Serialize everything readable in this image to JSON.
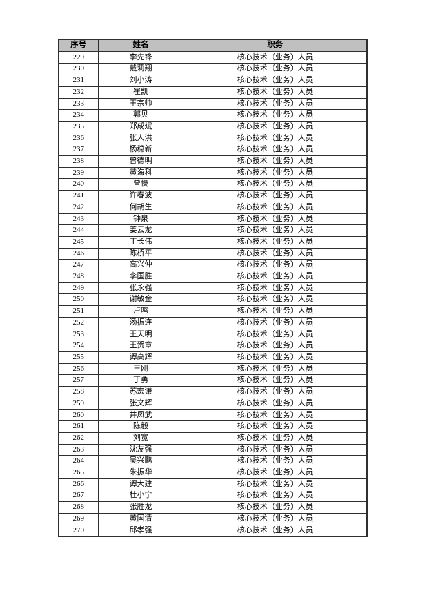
{
  "page": {
    "background": "#ffffff"
  },
  "table": {
    "header_bg": "#c0c0c0",
    "border_color": "#2f2f2f",
    "headers": [
      "序号",
      "姓名",
      "职务"
    ],
    "rows": [
      {
        "no": "229",
        "name": "李先锋",
        "title": "核心技术（业务）人员"
      },
      {
        "no": "230",
        "name": "戴莉翔",
        "title": "核心技术（业务）人员"
      },
      {
        "no": "231",
        "name": "刘小涛",
        "title": "核心技术（业务）人员"
      },
      {
        "no": "232",
        "name": "崔凯",
        "title": "核心技术（业务）人员"
      },
      {
        "no": "233",
        "name": "王宗帅",
        "title": "核心技术（业务）人员"
      },
      {
        "no": "234",
        "name": "郭贝",
        "title": "核心技术（业务）人员"
      },
      {
        "no": "235",
        "name": "郑成斌",
        "title": "核心技术（业务）人员"
      },
      {
        "no": "236",
        "name": "张人洪",
        "title": "核心技术（业务）人员"
      },
      {
        "no": "237",
        "name": "杨稳新",
        "title": "核心技术（业务）人员"
      },
      {
        "no": "238",
        "name": "曾德明",
        "title": "核心技术（业务）人员"
      },
      {
        "no": "239",
        "name": "黄海科",
        "title": "核心技术（业务）人员"
      },
      {
        "no": "240",
        "name": "曾懮",
        "title": "核心技术（业务）人员"
      },
      {
        "no": "241",
        "name": "许春波",
        "title": "核心技术（业务）人员"
      },
      {
        "no": "242",
        "name": "何胡生",
        "title": "核心技术（业务）人员"
      },
      {
        "no": "243",
        "name": "钟泉",
        "title": "核心技术（业务）人员"
      },
      {
        "no": "244",
        "name": "姜云龙",
        "title": "核心技术（业务）人员"
      },
      {
        "no": "245",
        "name": "丁长伟",
        "title": "核心技术（业务）人员"
      },
      {
        "no": "246",
        "name": "陈桥平",
        "title": "核心技术（业务）人员"
      },
      {
        "no": "247",
        "name": "高兴仲",
        "title": "核心技术（业务）人员"
      },
      {
        "no": "248",
        "name": "李国胜",
        "title": "核心技术（业务）人员"
      },
      {
        "no": "249",
        "name": "张永强",
        "title": "核心技术（业务）人员"
      },
      {
        "no": "250",
        "name": "谢敏金",
        "title": "核心技术（业务）人员"
      },
      {
        "no": "251",
        "name": "卢鸣",
        "title": "核心技术（业务）人员"
      },
      {
        "no": "252",
        "name": "汤振连",
        "title": "核心技术（业务）人员"
      },
      {
        "no": "253",
        "name": "王天明",
        "title": "核心技术（业务）人员"
      },
      {
        "no": "254",
        "name": "王贺章",
        "title": "核心技术（业务）人员"
      },
      {
        "no": "255",
        "name": "谭高辉",
        "title": "核心技术（业务）人员"
      },
      {
        "no": "256",
        "name": "王刚",
        "title": "核心技术（业务）人员"
      },
      {
        "no": "257",
        "name": "丁勇",
        "title": "核心技术（业务）人员"
      },
      {
        "no": "258",
        "name": "苏宏谦",
        "title": "核心技术（业务）人员"
      },
      {
        "no": "259",
        "name": "张文辉",
        "title": "核心技术（业务）人员"
      },
      {
        "no": "260",
        "name": "井凤武",
        "title": "核心技术（业务）人员"
      },
      {
        "no": "261",
        "name": "陈毅",
        "title": "核心技术（业务）人员"
      },
      {
        "no": "262",
        "name": "刘宽",
        "title": "核心技术（业务）人员"
      },
      {
        "no": "263",
        "name": "沈友强",
        "title": "核心技术（业务）人员"
      },
      {
        "no": "264",
        "name": "吴兴鹏",
        "title": "核心技术（业务）人员"
      },
      {
        "no": "265",
        "name": "朱振华",
        "title": "核心技术（业务）人员"
      },
      {
        "no": "266",
        "name": "谭大建",
        "title": "核心技术（业务）人员"
      },
      {
        "no": "267",
        "name": "杜小宁",
        "title": "核心技术（业务）人员"
      },
      {
        "no": "268",
        "name": "张胜龙",
        "title": "核心技术（业务）人员"
      },
      {
        "no": "269",
        "name": "黄国清",
        "title": "核心技术（业务）人员"
      },
      {
        "no": "270",
        "name": "邱孝强",
        "title": "核心技术（业务）人员"
      }
    ]
  }
}
